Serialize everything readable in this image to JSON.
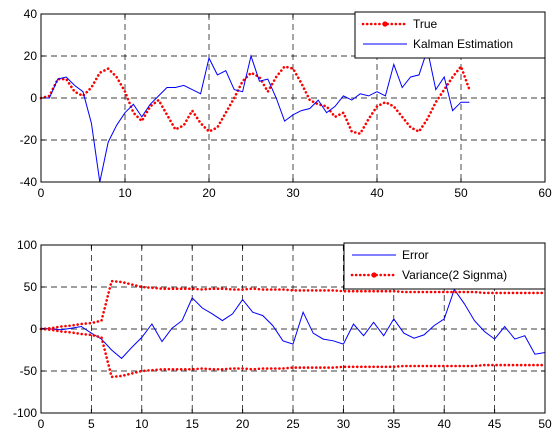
{
  "chart_data": [
    {
      "type": "line",
      "xlim": [
        0,
        60
      ],
      "ylim": [
        -40,
        40
      ],
      "xticks": [
        "0",
        "10",
        "20",
        "30",
        "40",
        "50",
        "60"
      ],
      "yticks": [
        "-40",
        "-20",
        "0",
        "20",
        "40"
      ],
      "grid": true,
      "legend_position": "top-right",
      "series": [
        {
          "name": "True",
          "color": "#ff0000",
          "style": "dotted-markers",
          "x": [
            0,
            1,
            2,
            3,
            4,
            5,
            6,
            7,
            8,
            9,
            10,
            11,
            12,
            13,
            14,
            15,
            16,
            17,
            18,
            19,
            20,
            21,
            22,
            23,
            24,
            25,
            26,
            27,
            28,
            29,
            30,
            31,
            32,
            33,
            34,
            35,
            36,
            37,
            38,
            39,
            40,
            41,
            42,
            43,
            44,
            45,
            46,
            47,
            48,
            49,
            50,
            51
          ],
          "y": [
            0,
            1,
            9,
            9,
            3,
            1,
            5,
            12,
            14,
            10,
            3,
            -7,
            -11,
            -4,
            -1,
            -8,
            -15,
            -13,
            -6,
            -12,
            -16,
            -14,
            -7,
            0,
            8,
            12,
            10,
            3,
            10,
            15,
            14,
            7,
            -1,
            -3,
            -4,
            -9,
            -7,
            -16,
            -17,
            -10,
            -4,
            -2,
            -4,
            -9,
            -14,
            -16,
            -10,
            -2,
            4,
            10,
            15,
            4
          ]
        },
        {
          "name": "Kalman Estimation",
          "color": "#0000ff",
          "style": "solid",
          "x": [
            0,
            1,
            2,
            3,
            4,
            5,
            6,
            7,
            8,
            9,
            10,
            11,
            12,
            13,
            14,
            15,
            16,
            17,
            18,
            19,
            20,
            21,
            22,
            23,
            24,
            25,
            26,
            27,
            28,
            29,
            30,
            31,
            32,
            33,
            34,
            35,
            36,
            37,
            38,
            39,
            40,
            41,
            42,
            43,
            44,
            45,
            46,
            47,
            48,
            49,
            50,
            51
          ],
          "y": [
            0,
            0,
            9,
            10,
            6,
            3,
            -12,
            -40,
            -21,
            -13,
            -7,
            -3,
            -9,
            -3,
            1,
            5,
            5,
            6,
            4,
            2,
            19,
            11,
            13,
            4,
            3,
            20,
            8,
            9,
            0,
            -11,
            -8,
            -6,
            -5,
            -1,
            -7,
            -4,
            1,
            -1,
            2,
            1,
            3,
            1,
            16,
            5,
            10,
            11,
            23,
            4,
            10,
            -6,
            -2,
            -2
          ]
        }
      ]
    },
    {
      "type": "line",
      "xlim": [
        0,
        50
      ],
      "ylim": [
        -100,
        100
      ],
      "xticks": [
        "0",
        "5",
        "10",
        "15",
        "20",
        "25",
        "30",
        "35",
        "40",
        "45",
        "50"
      ],
      "yticks": [
        "-100",
        "-50",
        "0",
        "50",
        "100"
      ],
      "grid": true,
      "legend_position": "top-right",
      "series": [
        {
          "name": "Error",
          "color": "#0000ff",
          "style": "solid",
          "x": [
            0,
            1,
            2,
            3,
            4,
            5,
            6,
            7,
            8,
            9,
            10,
            11,
            12,
            13,
            14,
            15,
            16,
            17,
            18,
            19,
            20,
            21,
            22,
            23,
            24,
            25,
            26,
            27,
            28,
            29,
            30,
            31,
            32,
            33,
            34,
            35,
            36,
            37,
            38,
            39,
            40,
            41,
            42,
            43,
            44,
            45,
            46,
            47,
            48,
            49,
            50
          ],
          "y": [
            1,
            0,
            -1,
            1,
            3,
            -5,
            -12,
            -25,
            -35,
            -22,
            -10,
            6,
            -15,
            1,
            10,
            37,
            25,
            18,
            10,
            18,
            35,
            20,
            16,
            4,
            -14,
            -18,
            20,
            -5,
            -12,
            -14,
            -18,
            6,
            -8,
            8,
            -8,
            12,
            -5,
            -11,
            -7,
            4,
            12,
            47,
            30,
            10,
            -3,
            -12,
            3,
            -12,
            -8,
            -30,
            -28
          ]
        },
        {
          "name": "Variance(2 Signma)",
          "color": "#ff0000",
          "style": "dotted-markers",
          "x": [
            0,
            1,
            2,
            3,
            4,
            5,
            6,
            7,
            8,
            9,
            10,
            11,
            12,
            13,
            14,
            15,
            16,
            17,
            18,
            19,
            20,
            21,
            22,
            23,
            24,
            25,
            26,
            27,
            28,
            29,
            30,
            31,
            32,
            33,
            34,
            35,
            36,
            37,
            38,
            39,
            40,
            41,
            42,
            43,
            44,
            45,
            46,
            47,
            48,
            49,
            50
          ],
          "y": [
            0,
            1,
            3,
            4,
            6,
            7,
            10,
            57,
            56,
            53,
            50,
            49,
            48,
            48,
            48,
            48,
            47,
            48,
            48,
            47,
            47,
            48,
            47,
            47,
            47,
            46,
            46,
            46,
            46,
            46,
            45,
            45,
            45,
            45,
            45,
            45,
            44,
            44,
            44,
            44,
            44,
            44,
            44,
            44,
            43,
            43,
            43,
            43,
            43,
            43,
            43
          ],
          "mirror": true
        }
      ]
    }
  ]
}
